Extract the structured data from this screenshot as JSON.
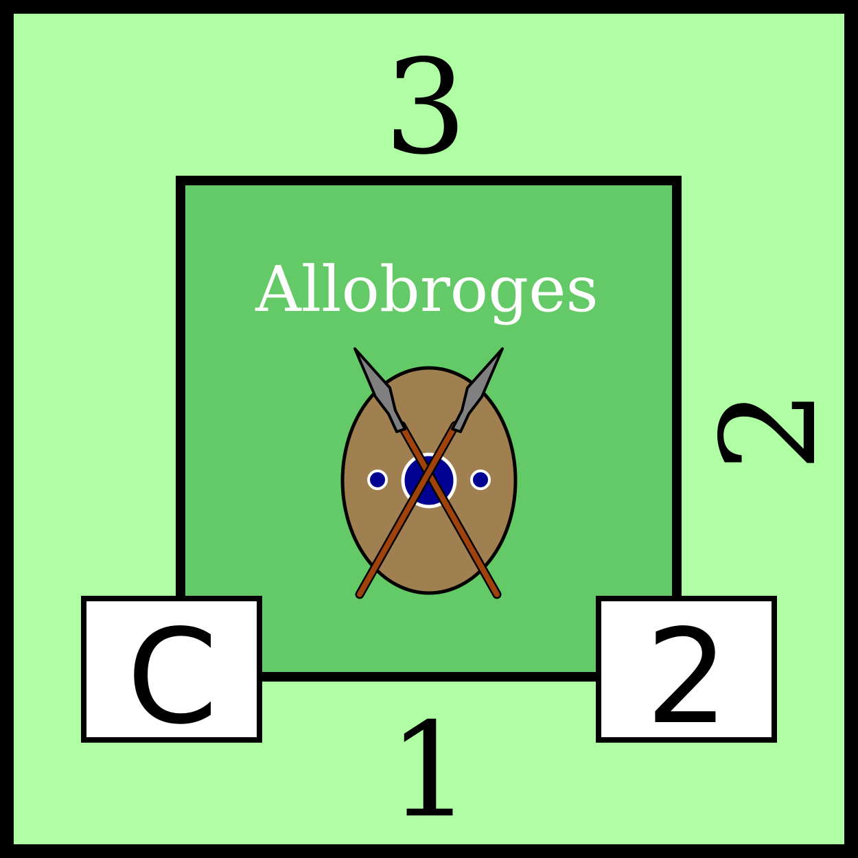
{
  "card": {
    "faction_name": "Allobroges",
    "value_top": "3",
    "value_right": "2",
    "value_bottom": "1",
    "box_left_label": "C",
    "box_right_label": "2"
  },
  "colors": {
    "outer_background": "#b0ffa4",
    "inner_background": "#64c967",
    "border": "#000000",
    "box_fill": "#ffffff",
    "faction_text": "#ffffff",
    "shield": "#a07f50",
    "boss": "#000091",
    "spear_shaft": "#a0420b",
    "spear_head": "#808080"
  },
  "icons": {
    "emblem": "shield-crossed-spears-icon"
  }
}
